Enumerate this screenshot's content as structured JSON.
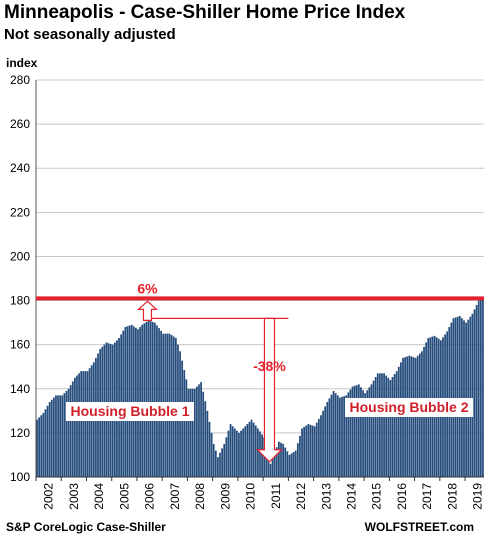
{
  "chart_data": {
    "type": "bar",
    "title": "Minneapolis - Case-Shiller Home Price Index",
    "subtitle": "Not seasonally adjusted",
    "ylabel": "index",
    "ylim": [
      100,
      280
    ],
    "yticks": [
      100,
      120,
      140,
      160,
      180,
      200,
      220,
      240,
      260,
      280
    ],
    "xticks": [
      "2002",
      "2003",
      "2004",
      "2005",
      "2006",
      "2007",
      "2008",
      "2009",
      "2010",
      "2011",
      "2012",
      "2013",
      "2014",
      "2015",
      "2016",
      "2017",
      "2018",
      "2019"
    ],
    "grid": true,
    "bar_color": "#234b7b",
    "keyframes": [
      [
        "2002-01",
        126
      ],
      [
        "2002-04",
        129
      ],
      [
        "2002-07",
        134
      ],
      [
        "2002-10",
        137
      ],
      [
        "2003-01",
        137
      ],
      [
        "2003-04",
        140
      ],
      [
        "2003-07",
        145
      ],
      [
        "2003-10",
        148
      ],
      [
        "2004-01",
        148
      ],
      [
        "2004-04",
        152
      ],
      [
        "2004-07",
        158
      ],
      [
        "2004-10",
        161
      ],
      [
        "2005-01",
        160
      ],
      [
        "2005-04",
        163
      ],
      [
        "2005-07",
        168
      ],
      [
        "2005-10",
        169
      ],
      [
        "2006-01",
        167
      ],
      [
        "2006-03",
        169
      ],
      [
        "2006-06",
        171
      ],
      [
        "2006-09",
        170
      ],
      [
        "2007-01",
        165
      ],
      [
        "2007-04",
        165
      ],
      [
        "2007-07",
        163
      ],
      [
        "2007-09",
        157
      ],
      [
        "2008-01",
        140
      ],
      [
        "2008-04",
        140
      ],
      [
        "2008-07",
        143
      ],
      [
        "2008-10",
        130
      ],
      [
        "2009-01",
        115
      ],
      [
        "2009-03",
        109
      ],
      [
        "2009-06",
        115
      ],
      [
        "2009-09",
        124
      ],
      [
        "2010-01",
        120
      ],
      [
        "2010-04",
        123
      ],
      [
        "2010-07",
        126
      ],
      [
        "2010-10",
        122
      ],
      [
        "2011-01",
        118
      ],
      [
        "2011-02",
        112
      ],
      [
        "2011-04",
        106
      ],
      [
        "2011-06",
        111
      ],
      [
        "2011-08",
        116
      ],
      [
        "2011-10",
        115
      ],
      [
        "2012-01",
        110
      ],
      [
        "2012-04",
        112
      ],
      [
        "2012-07",
        122
      ],
      [
        "2012-10",
        124
      ],
      [
        "2013-01",
        123
      ],
      [
        "2013-04",
        128
      ],
      [
        "2013-07",
        134
      ],
      [
        "2013-10",
        139
      ],
      [
        "2014-01",
        136
      ],
      [
        "2014-04",
        137
      ],
      [
        "2014-07",
        141
      ],
      [
        "2014-10",
        142
      ],
      [
        "2015-01",
        138
      ],
      [
        "2015-04",
        142
      ],
      [
        "2015-07",
        147
      ],
      [
        "2015-10",
        147
      ],
      [
        "2016-01",
        144
      ],
      [
        "2016-04",
        148
      ],
      [
        "2016-07",
        154
      ],
      [
        "2016-10",
        155
      ],
      [
        "2017-01",
        154
      ],
      [
        "2017-04",
        157
      ],
      [
        "2017-07",
        163
      ],
      [
        "2017-10",
        164
      ],
      [
        "2018-01",
        162
      ],
      [
        "2018-04",
        166
      ],
      [
        "2018-07",
        172
      ],
      [
        "2018-10",
        173
      ],
      [
        "2019-01",
        170
      ],
      [
        "2019-04",
        174
      ],
      [
        "2019-07",
        180
      ],
      [
        "2019-09",
        181
      ]
    ],
    "reference_line": {
      "value": 181,
      "color": "#e3222d"
    },
    "annotations": {
      "up_pct": "6%",
      "down_pct": "-38%",
      "bubble1": "Housing Bubble 1",
      "bubble2": "Housing Bubble 2"
    }
  },
  "source": "S&P CoreLogic Case-Shiller",
  "brand": "WOLFSTREET.com"
}
